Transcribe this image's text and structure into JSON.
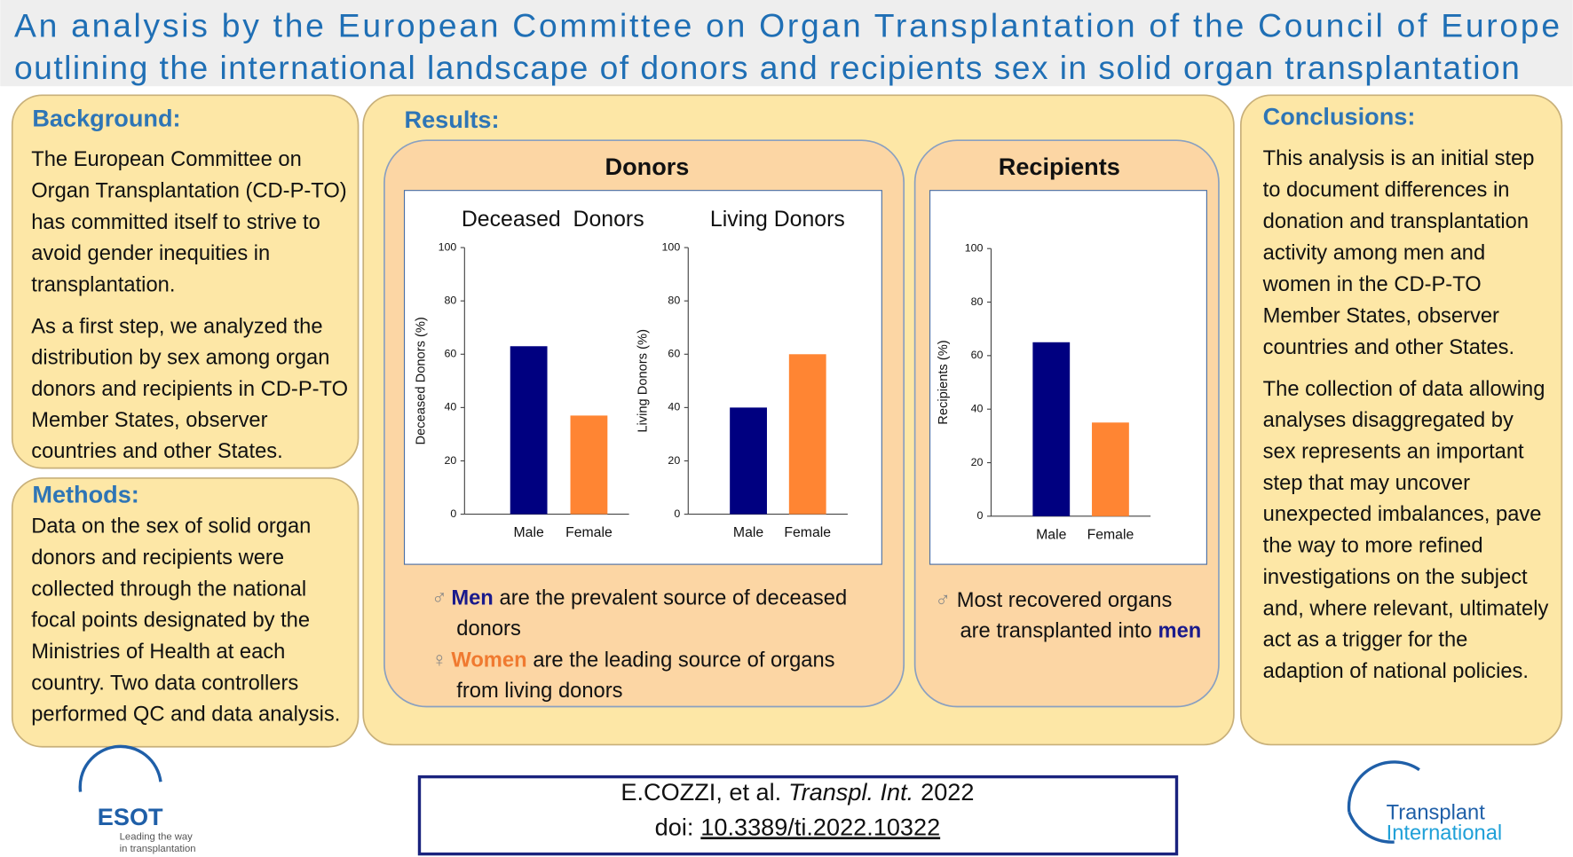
{
  "header": {
    "title_lines": [
      "An analysis by the European Committee on Organ Transplantation of the Council of Europe",
      "outlining the international landscape of donors and recipients sex in solid organ transplantation"
    ]
  },
  "background": {
    "heading": "Background:",
    "paragraphs": [
      [
        "The European Committee on",
        "Organ Transplantation (CD-P-TO)",
        "has committed itself to strive to",
        "avoid gender inequities in",
        "transplantation."
      ],
      [
        "As a first step, we analyzed the",
        "distribution by sex among organ",
        "donors and recipients in CD-P-TO",
        "Member States, observer",
        "countries and other States."
      ]
    ]
  },
  "methods": {
    "heading": "Methods:",
    "paragraphs": [
      [
        "Data on the sex of solid organ",
        "donors and recipients were",
        "collected through the national",
        "focal points designated by the",
        "Ministries of Health at each",
        "country. Two data controllers",
        "performed QC and data analysis."
      ]
    ]
  },
  "results": {
    "heading": "Results:",
    "donors_panel": {
      "title": "Donors",
      "notes": [
        {
          "symbol": "♂",
          "emphasis": "Men",
          "lines": [
            "are the prevalent source of deceased",
            "donors"
          ]
        },
        {
          "symbol": "♀",
          "emphasis": "Women",
          "lines": [
            "are the leading source of organs",
            "from living donors"
          ]
        }
      ]
    },
    "recipients_panel": {
      "title": "Recipients",
      "note": {
        "symbol": "♂",
        "lines": [
          "Most recovered organs",
          "are transplanted into"
        ],
        "emphasis": "men"
      }
    }
  },
  "conclusions": {
    "heading": "Conclusions:",
    "paragraphs": [
      [
        "This analysis is an initial step",
        "to document differences in",
        "donation and transplantation",
        "activity among men and",
        "women in the CD-P-TO",
        "Member States, observer",
        "countries and other States."
      ],
      [
        "The collection of data allowing",
        "analyses disaggregated by",
        "sex represents an important",
        "step that may uncover",
        "unexpected imbalances, pave",
        "the way to more refined",
        "investigations on the subject",
        "and, where relevant, ultimately",
        "act as a trigger for the",
        "adaption of national policies."
      ]
    ]
  },
  "citation": {
    "authors": "E.COZZI, et al.",
    "journal": "Transpl. Int.",
    "year": "2022",
    "doi_label": "doi:",
    "doi": "10.3389/ti.2022.10322"
  },
  "logos": {
    "esot": {
      "name": "ESOT",
      "tagline_lines": [
        "Leading the way",
        "in transplantation"
      ]
    },
    "transplant_international": {
      "lines": [
        "Transplant",
        "International"
      ]
    }
  },
  "chart_data": [
    {
      "type": "bar",
      "title": "Deceased  Donors",
      "ylabel": "Deceased Donors (%)",
      "categories": [
        "Male",
        "Female"
      ],
      "values": [
        63,
        37
      ],
      "colors": [
        "#000080",
        "#ff8533"
      ],
      "ylim": [
        0,
        100
      ],
      "yticks": [
        0,
        20,
        40,
        60,
        80,
        100
      ]
    },
    {
      "type": "bar",
      "title": "Living Donors",
      "ylabel": "Living Donors (%)",
      "categories": [
        "Male",
        "Female"
      ],
      "values": [
        40,
        60
      ],
      "colors": [
        "#000080",
        "#ff8533"
      ],
      "ylim": [
        0,
        100
      ],
      "yticks": [
        0,
        20,
        40,
        60,
        80,
        100
      ]
    },
    {
      "type": "bar",
      "ylabel": "Recipients (%)",
      "categories": [
        "Male",
        "Female"
      ],
      "values": [
        65,
        35
      ],
      "colors": [
        "#000080",
        "#ff8533"
      ],
      "ylim": [
        0,
        100
      ],
      "yticks": [
        0,
        20,
        40,
        60,
        80,
        100
      ]
    }
  ]
}
